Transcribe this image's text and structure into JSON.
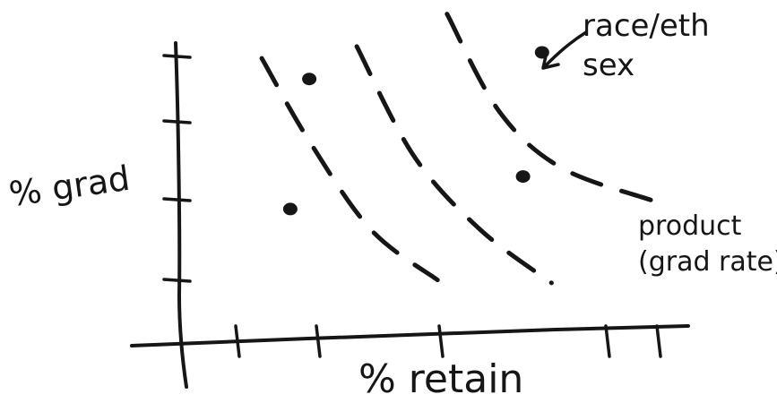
{
  "chart_data": {
    "type": "scatter",
    "xlabel": "% retain",
    "ylabel": "% grad",
    "x_ticks": 6,
    "y_ticks": 4,
    "points": [
      {
        "x": 0.27,
        "y": 0.86
      },
      {
        "x": 0.23,
        "y": 0.42
      },
      {
        "x": 0.72,
        "y": 0.53
      },
      {
        "x": 0.76,
        "y": 0.95
      }
    ],
    "curves": [
      {
        "points": [
          [
            0.17,
            0.93
          ],
          [
            0.27,
            0.65
          ],
          [
            0.4,
            0.35
          ],
          [
            0.54,
            0.18
          ]
        ]
      },
      {
        "points": [
          [
            0.37,
            0.97
          ],
          [
            0.49,
            0.6
          ],
          [
            0.63,
            0.35
          ],
          [
            0.78,
            0.17
          ]
        ]
      },
      {
        "points": [
          [
            0.56,
            1.08
          ],
          [
            0.67,
            0.75
          ],
          [
            0.8,
            0.56
          ],
          [
            0.99,
            0.45
          ]
        ]
      }
    ],
    "annotations": {
      "legend_point": "race/eth sex",
      "curve_label": "product (grad rate)"
    }
  }
}
